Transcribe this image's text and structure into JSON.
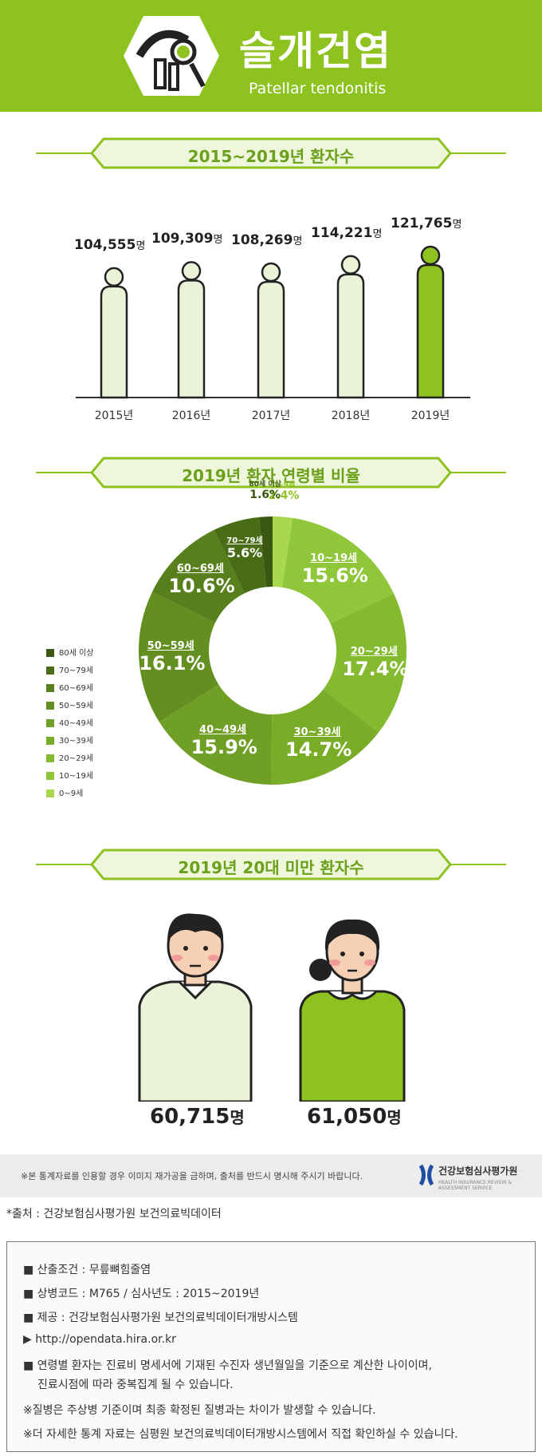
{
  "header": {
    "title": "슬개건염",
    "subtitle": "Patellar tendonitis"
  },
  "section1": {
    "title": "2015~2019년 환자수"
  },
  "section2": {
    "title": "2019년 환자 연령별 비율"
  },
  "section3": {
    "title": "2019년 20대 미만 환자수"
  },
  "unit": "명",
  "colors": {
    "brand": "#8dc21f",
    "light": "#eaf3d8",
    "dark": "#3d5f10"
  },
  "chart_data": [
    {
      "type": "bar",
      "title": "2015~2019년 환자수",
      "categories": [
        "2015년",
        "2016년",
        "2017년",
        "2018년",
        "2019년"
      ],
      "values": [
        104555,
        109309,
        108269,
        114221,
        121765
      ],
      "value_labels": [
        "104,555",
        "109,309",
        "108,269",
        "114,221",
        "121,765"
      ],
      "highlight": "2019년"
    },
    {
      "type": "pie",
      "title": "2019년 환자 연령별 비율",
      "categories": [
        "0~9세",
        "10~19세",
        "20~29세",
        "30~39세",
        "40~49세",
        "50~59세",
        "60~69세",
        "70~79세",
        "80세 이상"
      ],
      "values": [
        2.4,
        15.6,
        17.4,
        14.7,
        15.9,
        16.1,
        10.6,
        5.6,
        1.6
      ],
      "value_labels": [
        "2.4%",
        "15.6%",
        "17.4%",
        "14.7%",
        "15.9%",
        "16.1%",
        "10.6%",
        "5.6%",
        "1.6%"
      ],
      "colors": [
        "#a8d84e",
        "#8fc63a",
        "#84ba2f",
        "#79ad27",
        "#6f9f24",
        "#638f20",
        "#57801c",
        "#496d17",
        "#3a5810"
      ],
      "legend": [
        "80세 이상",
        "70~79세",
        "60~69세",
        "50~59세",
        "40~49세",
        "30~39세",
        "20~29세",
        "10~19세",
        "0~9세"
      ]
    },
    {
      "type": "bar",
      "title": "2019년 20대 미만 환자수",
      "categories": [
        "male",
        "female"
      ],
      "values": [
        60715,
        61050
      ],
      "value_labels": [
        "60,715",
        "61,050"
      ]
    }
  ],
  "notice": {
    "text": "※본 통계자료를 인용할 경우 이미지 재가공을 금하며, 출처를 반드시 명시해 주시기 바랍니다.",
    "org": "건강보험심사평가원",
    "org_sub": "HEALTH INSURANCE REVIEW & ASSESSMENT SERVICE"
  },
  "source": "*출처 : 건강보험심사평가원 보건의료빅데이터",
  "info": [
    "■ 산출조건 : 무릎뼈힘줄염",
    "■ 상병코드 : M765 / 심사년도 : 2015~2019년",
    "■ 제공 : 건강보험심사평가원 보건의료빅데이터개방시스템",
    "▶ http://opendata.hira.or.kr",
    "■ 연령별 환자는 진료비 명세서에 기재된 수진자 생년월일을 기준으로 계산한 나이이며,",
    "진료시점에 따라 중복집계 될 수 있습니다.",
    "※질병은 주상병 기준이며 최종 확정된 질병과는 차이가 발생할 수 있습니다.",
    "※더 자세한 통계 자료는 심평원 보건의료빅데이터개방시스템에서 직접 확인하실 수 있습니다."
  ]
}
